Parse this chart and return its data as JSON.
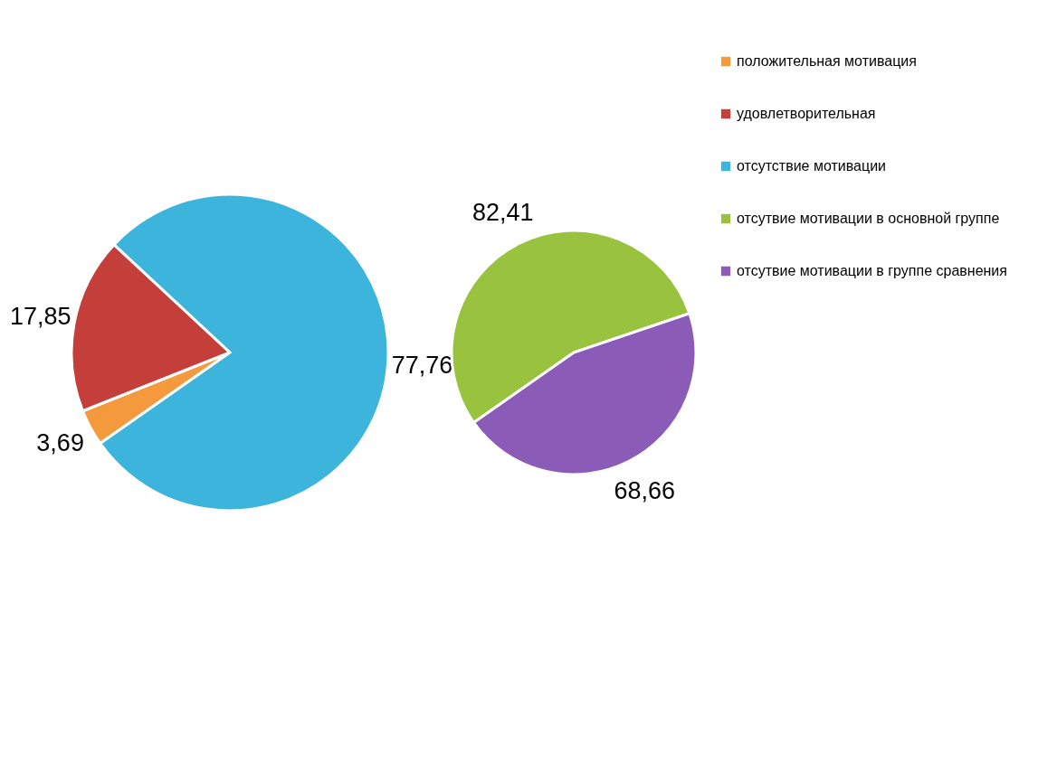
{
  "chart_data": [
    {
      "type": "pie",
      "categories": [
        "положительная мотивация",
        "удовлетворительная",
        "отсутствие мотивации"
      ],
      "values": [
        3.69,
        17.85,
        77.76
      ],
      "value_labels": [
        "3,69",
        "17,85",
        "77,76"
      ],
      "colors": [
        "#f59a3c",
        "#c43f3a",
        "#3cb4dc"
      ],
      "legend": "right"
    },
    {
      "type": "pie",
      "categories": [
        "отсутвие мотивации в основной группе",
        "отсутвие мотивации в группе сравнения"
      ],
      "values": [
        82.41,
        68.66
      ],
      "value_labels": [
        "82,41",
        "68,66"
      ],
      "colors": [
        "#99c33f",
        "#8a5cb8"
      ],
      "legend": "top right"
    }
  ]
}
